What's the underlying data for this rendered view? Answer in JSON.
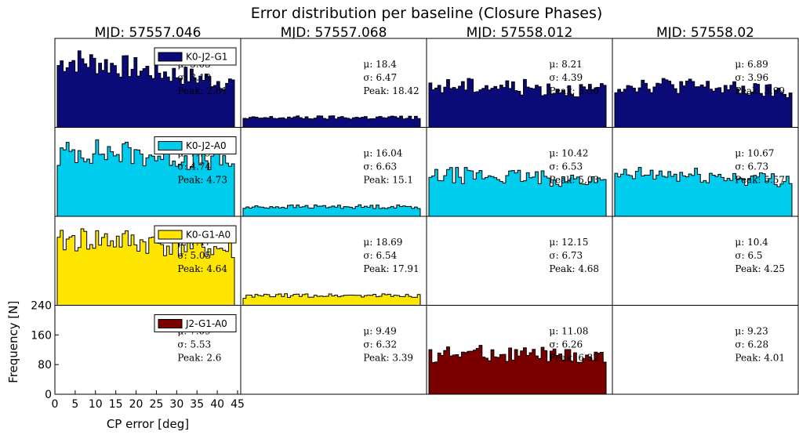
{
  "chart_data": {
    "type": "histogram-grid",
    "title": "Error distribution per baseline (Closure Phases)",
    "xlabel": "CP error [deg]",
    "ylabel": "Frequency [N]",
    "xlim": [
      0,
      45
    ],
    "ylim": [
      0,
      240
    ],
    "xticks": [
      "0",
      "5",
      "10",
      "15",
      "20",
      "25",
      "30",
      "35",
      "40",
      "45"
    ],
    "yticks": [
      "0",
      "80",
      "160",
      "240"
    ],
    "columns": [
      "MJD: 57557.046",
      "MJD: 57557.068",
      "MJD: 57558.012",
      "MJD: 57558.02"
    ],
    "rows": [
      {
        "baseline": "K0-J2-G1",
        "color": "#0a0a78",
        "cells": [
          {
            "mu": "5.03",
            "sigma": "3.19",
            "peak": "2.61"
          },
          {
            "mu": "18.4",
            "sigma": "6.47",
            "peak": "18.42"
          },
          {
            "mu": "8.21",
            "sigma": "4.39",
            "peak": "5.56"
          },
          {
            "mu": "6.89",
            "sigma": "3.96",
            "peak": "3.99"
          }
        ]
      },
      {
        "baseline": "K0-J2-A0",
        "color": "#00ccee",
        "cells": [
          {
            "mu": "7.79",
            "sigma": "4.74",
            "peak": "4.73"
          },
          {
            "mu": "16.04",
            "sigma": "6.63",
            "peak": "15.1"
          },
          {
            "mu": "10.42",
            "sigma": "6.53",
            "peak": "5.03"
          },
          {
            "mu": "10.67",
            "sigma": "6.73",
            "peak": "5.57"
          }
        ]
      },
      {
        "baseline": "K0-G1-A0",
        "color": "#ffe600",
        "cells": [
          {
            "mu": "7.47",
            "sigma": "5.05",
            "peak": "4.64"
          },
          {
            "mu": "18.69",
            "sigma": "6.54",
            "peak": "17.91"
          },
          {
            "mu": "12.15",
            "sigma": "6.73",
            "peak": "4.68"
          },
          {
            "mu": "10.4",
            "sigma": "6.5",
            "peak": "4.25"
          }
        ]
      },
      {
        "baseline": "J2-G1-A0",
        "color": "#7a0000",
        "cells": [
          {
            "mu": "7.09",
            "sigma": "5.53",
            "peak": "2.6"
          },
          {
            "mu": "9.49",
            "sigma": "6.32",
            "peak": "3.39"
          },
          {
            "mu": "11.08",
            "sigma": "6.26",
            "peak": "6.32"
          },
          {
            "mu": "9.23",
            "sigma": "6.28",
            "peak": "4.01"
          }
        ]
      }
    ],
    "stat_labels": {
      "mu": "μ:",
      "sigma": "σ:",
      "peak": "Peak:"
    },
    "legend_placement": "top-right of first column",
    "grid": false
  }
}
